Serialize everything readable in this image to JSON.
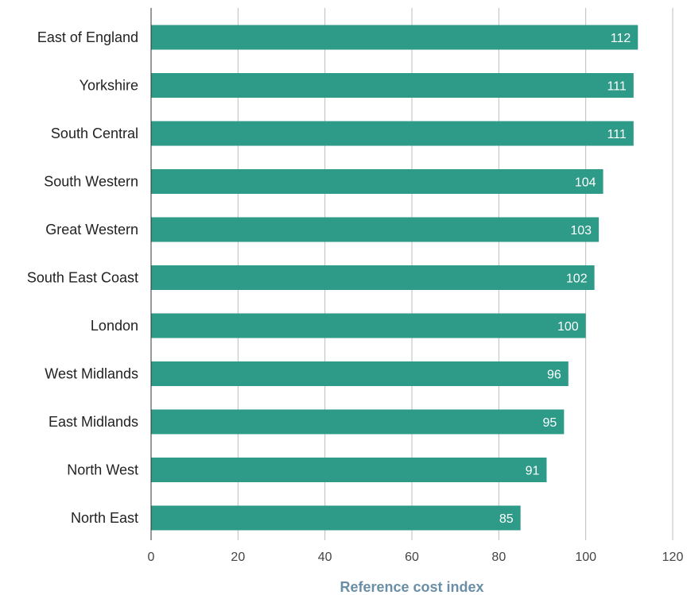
{
  "chart_data": {
    "type": "bar",
    "orientation": "horizontal",
    "categories": [
      "East of England",
      "Yorkshire",
      "South Central",
      "South Western",
      "Great Western",
      "South East Coast",
      "London",
      "West Midlands",
      "East Midlands",
      "North West",
      "North East"
    ],
    "values": [
      112,
      111,
      111,
      104,
      103,
      102,
      100,
      96,
      95,
      91,
      85
    ],
    "xlabel": "Reference cost index",
    "ylabel": "",
    "xlim": [
      0,
      120
    ],
    "xticks": [
      0,
      20,
      40,
      60,
      80,
      100,
      120
    ],
    "grid": true,
    "legend": "none",
    "data_labels": "inside-end"
  },
  "colors": {
    "bar": "#2e9a88",
    "grid": "#bdbdbd",
    "axis_title": "#6a8ea6",
    "value_label": "#ffffff"
  }
}
